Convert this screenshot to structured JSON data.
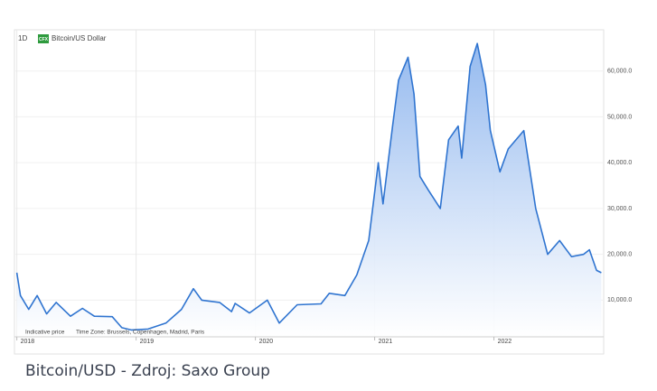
{
  "chart_data": {
    "type": "area",
    "interval": "1D",
    "badge": "CFX",
    "title": "Bitcoin/US Dollar",
    "annotations": [
      "Indicative price",
      "Time Zone: Brussels, Copenhagen, Madrid, Paris"
    ],
    "color": "#2f74d0",
    "x": [
      2018.0,
      2018.03,
      2018.1,
      2018.17,
      2018.25,
      2018.33,
      2018.45,
      2018.55,
      2018.65,
      2018.8,
      2018.88,
      2018.96,
      2019.1,
      2019.25,
      2019.38,
      2019.48,
      2019.55,
      2019.7,
      2019.8,
      2019.83,
      2019.95,
      2020.1,
      2020.2,
      2020.35,
      2020.55,
      2020.62,
      2020.75,
      2020.85,
      2020.95,
      2021.03,
      2021.07,
      2021.15,
      2021.2,
      2021.28,
      2021.33,
      2021.38,
      2021.45,
      2021.55,
      2021.62,
      2021.7,
      2021.73,
      2021.8,
      2021.86,
      2021.93,
      2021.97,
      2022.05,
      2022.12,
      2022.25,
      2022.35,
      2022.45,
      2022.55,
      2022.65,
      2022.75,
      2022.8,
      2022.86,
      2022.9
    ],
    "values": [
      16000,
      11000,
      8000,
      11000,
      7000,
      9500,
      6500,
      8200,
      6500,
      6400,
      4000,
      3500,
      3700,
      5000,
      8000,
      12500,
      10000,
      9500,
      7500,
      9300,
      7200,
      10000,
      5000,
      9000,
      9200,
      11500,
      11000,
      15500,
      23000,
      40000,
      31000,
      48000,
      58000,
      63000,
      55000,
      37000,
      34000,
      30000,
      45000,
      48000,
      41000,
      61000,
      66000,
      57000,
      47000,
      38000,
      43000,
      47000,
      30000,
      20000,
      23000,
      19500,
      20000,
      21000,
      16500,
      16000
    ],
    "xlim": [
      2017.98,
      2022.92
    ],
    "xticks": [
      2018,
      2019,
      2020,
      2021,
      2022
    ],
    "ylim": [
      2000,
      69000
    ],
    "yticks": [
      {
        "value": 10000,
        "label": "10,000.0"
      },
      {
        "value": 20000,
        "label": "20,000.0"
      },
      {
        "value": 30000,
        "label": "30,000.0"
      },
      {
        "value": 40000,
        "label": "40,000.0"
      },
      {
        "value": 50000,
        "label": "50,000.0"
      },
      {
        "value": 60000,
        "label": "60,000.0"
      }
    ],
    "grid": true
  },
  "caption": "Bitcoin/USD - Zdroj: Saxo Group"
}
